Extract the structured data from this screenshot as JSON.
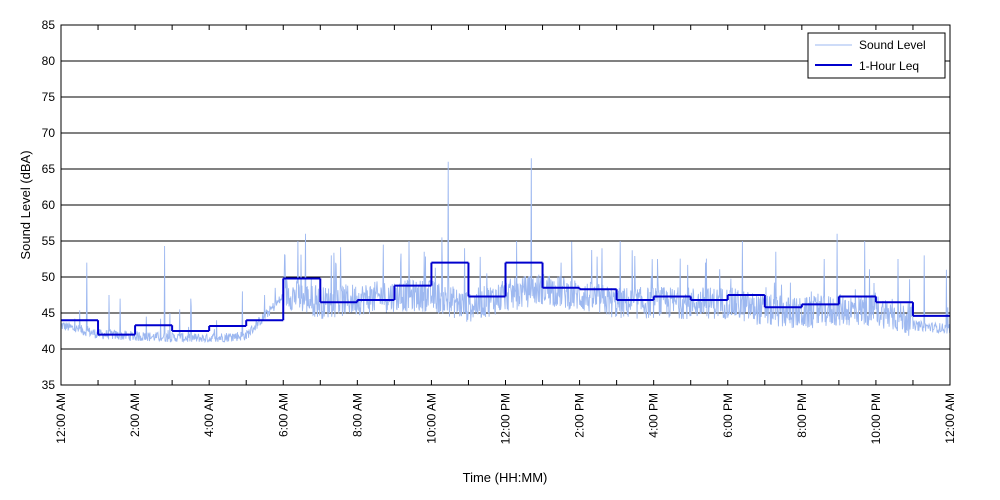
{
  "chart_data": {
    "type": "line",
    "title": "",
    "xlabel": "Time (HH:MM)",
    "ylabel": "Sound Level (dBA)",
    "xlim_hours": [
      0,
      24
    ],
    "ylim": [
      35,
      85
    ],
    "y_ticks": [
      35,
      40,
      45,
      50,
      55,
      60,
      65,
      70,
      75,
      80,
      85
    ],
    "x_tick_hours": [
      0,
      2,
      4,
      6,
      8,
      10,
      12,
      14,
      16,
      18,
      20,
      22,
      24
    ],
    "x_tick_labels": [
      "12:00 AM",
      "2:00 AM",
      "4:00 AM",
      "6:00 AM",
      "8:00 AM",
      "10:00 AM",
      "12:00 PM",
      "2:00 PM",
      "4:00 PM",
      "6:00 PM",
      "8:00 PM",
      "10:00 PM",
      "12:00 AM"
    ],
    "grid": "horizontal",
    "legend_position": "top-right",
    "series": [
      {
        "name": "Sound Level",
        "color": "#9db8f0",
        "kind": "noisy-trace",
        "baseline": [
          43.0,
          41.8,
          41.5,
          41.3,
          41.2,
          41.6,
          47.0,
          45.5,
          46.0,
          46.5,
          46.5,
          45.0,
          46.5,
          47.5,
          46.5,
          45.5,
          45.5,
          45.5,
          45.5,
          44.5,
          44.0,
          44.5,
          44.5,
          43.0,
          42.5
        ],
        "peaks": [
          {
            "hour": 0.15,
            "value": 52.5
          },
          {
            "hour": 0.7,
            "value": 52.0
          },
          {
            "hour": 1.3,
            "value": 47.5
          },
          {
            "hour": 1.6,
            "value": 47.0
          },
          {
            "hour": 2.3,
            "value": 44.5
          },
          {
            "hour": 2.8,
            "value": 54.3
          },
          {
            "hour": 3.2,
            "value": 45.5
          },
          {
            "hour": 3.5,
            "value": 47.0
          },
          {
            "hour": 4.2,
            "value": 44.0
          },
          {
            "hour": 4.9,
            "value": 48.0
          },
          {
            "hour": 5.5,
            "value": 47.5
          },
          {
            "hour": 6.4,
            "value": 55.0
          },
          {
            "hour": 6.6,
            "value": 56.0
          },
          {
            "hour": 7.3,
            "value": 53.0
          },
          {
            "hour": 8.7,
            "value": 54.5
          },
          {
            "hour": 9.4,
            "value": 55.0
          },
          {
            "hour": 9.8,
            "value": 53.5
          },
          {
            "hour": 10.45,
            "value": 66.0
          },
          {
            "hour": 10.9,
            "value": 54.0
          },
          {
            "hour": 11.5,
            "value": 50.5
          },
          {
            "hour": 12.3,
            "value": 55.0
          },
          {
            "hour": 12.7,
            "value": 66.5
          },
          {
            "hour": 13.5,
            "value": 52.0
          },
          {
            "hour": 14.6,
            "value": 54.0
          },
          {
            "hour": 15.1,
            "value": 55.0
          },
          {
            "hour": 16.1,
            "value": 52.5
          },
          {
            "hour": 17.4,
            "value": 52.0
          },
          {
            "hour": 18.4,
            "value": 55.0
          },
          {
            "hour": 19.3,
            "value": 53.5
          },
          {
            "hour": 20.6,
            "value": 52.5
          },
          {
            "hour": 20.95,
            "value": 56.0
          },
          {
            "hour": 21.7,
            "value": 55.0
          },
          {
            "hour": 22.6,
            "value": 52.5
          },
          {
            "hour": 23.3,
            "value": 53.0
          },
          {
            "hour": 23.9,
            "value": 51.0
          }
        ]
      },
      {
        "name": "1-Hour Leq",
        "color": "#0000cd",
        "kind": "step",
        "hours": [
          0,
          1,
          2,
          3,
          4,
          5,
          6,
          7,
          8,
          9,
          10,
          11,
          12,
          13,
          14,
          15,
          16,
          17,
          18,
          19,
          20,
          21,
          22,
          23
        ],
        "values": [
          44.0,
          42.0,
          43.3,
          42.5,
          43.2,
          44.0,
          49.8,
          46.5,
          46.8,
          48.8,
          52.0,
          47.3,
          52.0,
          48.5,
          48.3,
          46.8,
          47.3,
          46.8,
          47.5,
          45.8,
          46.2,
          47.3,
          46.5,
          44.6
        ]
      }
    ]
  }
}
